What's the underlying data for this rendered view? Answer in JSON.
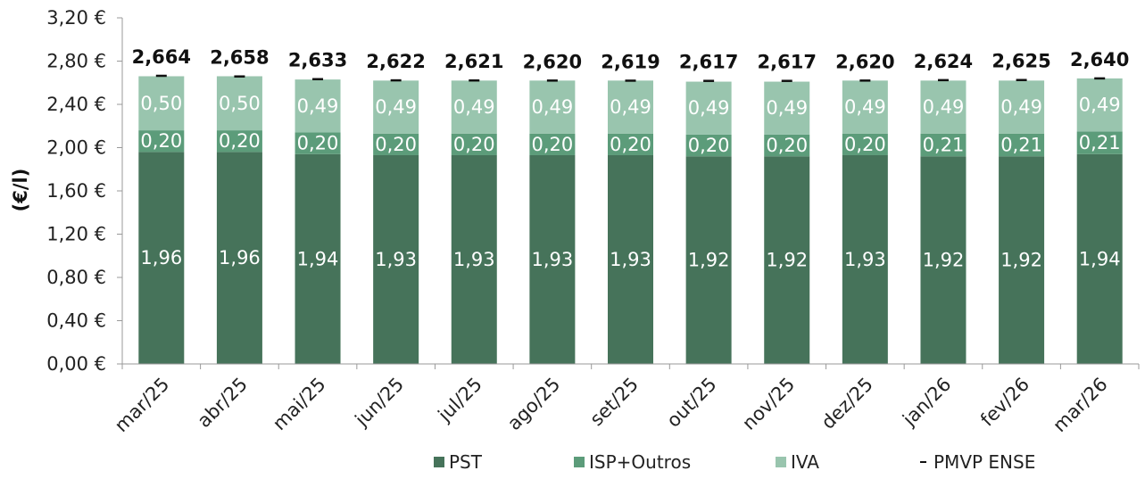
{
  "chart_data": {
    "type": "bar",
    "stacked": true,
    "ylabel": "(€/l)",
    "ylim": [
      0,
      3.2
    ],
    "yticks": [
      "0,00 €",
      "0,40 €",
      "0,80 €",
      "1,20 €",
      "1,60 €",
      "2,00 €",
      "2,40 €",
      "2,80 €",
      "3,20 €"
    ],
    "categories": [
      "mar/25",
      "abr/25",
      "mai/25",
      "jun/25",
      "jul/25",
      "ago/25",
      "set/25",
      "out/25",
      "nov/25",
      "dez/25",
      "jan/26",
      "fev/26",
      "mar/26"
    ],
    "series": [
      {
        "name": "PST",
        "color": "#46735a",
        "values": [
          1.96,
          1.96,
          1.94,
          1.93,
          1.93,
          1.93,
          1.93,
          1.92,
          1.92,
          1.93,
          1.92,
          1.92,
          1.94
        ],
        "labels": [
          "1,96",
          "1,96",
          "1,94",
          "1,93",
          "1,93",
          "1,93",
          "1,93",
          "1,92",
          "1,92",
          "1,93",
          "1,92",
          "1,92",
          "1,94"
        ]
      },
      {
        "name": "ISP+Outros",
        "color": "#5c9c7a",
        "values": [
          0.2,
          0.2,
          0.2,
          0.2,
          0.2,
          0.2,
          0.2,
          0.2,
          0.2,
          0.2,
          0.21,
          0.21,
          0.21
        ],
        "labels": [
          "0,20",
          "0,20",
          "0,20",
          "0,20",
          "0,20",
          "0,20",
          "0,20",
          "0,20",
          "0,20",
          "0,20",
          "0,21",
          "0,21",
          "0,21"
        ]
      },
      {
        "name": "IVA",
        "color": "#99c5ae",
        "values": [
          0.5,
          0.5,
          0.49,
          0.49,
          0.49,
          0.49,
          0.49,
          0.49,
          0.49,
          0.49,
          0.49,
          0.49,
          0.49
        ],
        "labels": [
          "0,50",
          "0,50",
          "0,49",
          "0,49",
          "0,49",
          "0,49",
          "0,49",
          "0,49",
          "0,49",
          "0,49",
          "0,49",
          "0,49",
          "0,49"
        ]
      }
    ],
    "marker_series": {
      "name": "PMVP ENSE",
      "color": "#111111",
      "values": [
        2.664,
        2.658,
        2.633,
        2.622,
        2.621,
        2.62,
        2.619,
        2.617,
        2.617,
        2.62,
        2.624,
        2.625,
        2.64
      ],
      "labels": [
        "2,664",
        "2,658",
        "2,633",
        "2,622",
        "2,621",
        "2,620",
        "2,619",
        "2,617",
        "2,617",
        "2,620",
        "2,624",
        "2,625",
        "2,640"
      ]
    },
    "legend": {
      "position": "bottom-right",
      "items": [
        {
          "name": "PST",
          "symbol": "square",
          "color": "#46735a"
        },
        {
          "name": "ISP+Outros",
          "symbol": "square",
          "color": "#5c9c7a"
        },
        {
          "name": "IVA",
          "symbol": "square",
          "color": "#99c5ae"
        },
        {
          "name": "PMVP ENSE",
          "symbol": "dash",
          "color": "#111111"
        }
      ]
    },
    "grid": false
  }
}
